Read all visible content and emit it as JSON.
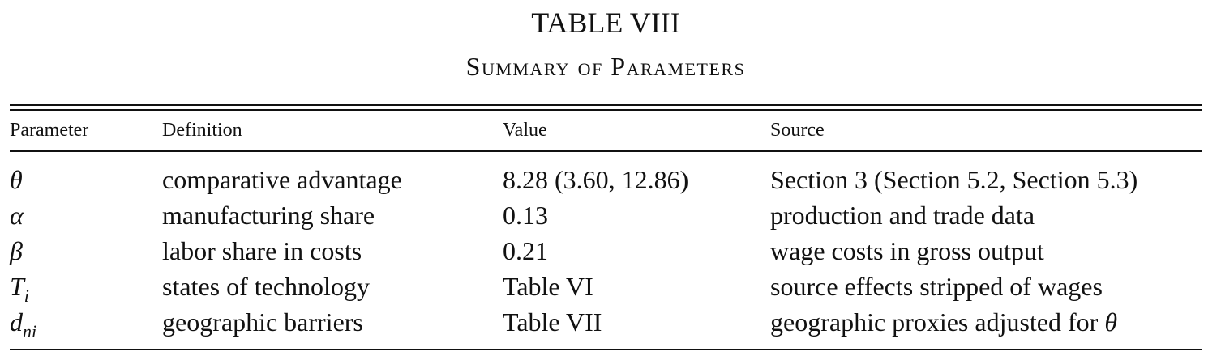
{
  "table": {
    "number": "TABLE VIII",
    "caption": "Summary of Parameters",
    "headers": [
      "Parameter",
      "Definition",
      "Value",
      "Source"
    ],
    "rows": [
      {
        "symbol": "θ",
        "subscript": "",
        "definition": "comparative advantage",
        "value": "8.28 (3.60, 12.86)",
        "source": "Section 3 (Section 5.2, Section 5.3)"
      },
      {
        "symbol": "α",
        "subscript": "",
        "definition": "manufacturing share",
        "value": "0.13",
        "source": "production and trade data"
      },
      {
        "symbol": "β",
        "subscript": "",
        "definition": "labor share in costs",
        "value": "0.21",
        "source": "wage costs in gross output"
      },
      {
        "symbol": "T",
        "subscript": "i",
        "definition": "states of technology",
        "value": "Table VI",
        "source": "source effects stripped of wages"
      },
      {
        "symbol": "d",
        "subscript": "ni",
        "definition": "geographic barriers",
        "value": "Table VII",
        "source": "geographic proxies adjusted for ",
        "source_symbol": "θ"
      }
    ]
  }
}
